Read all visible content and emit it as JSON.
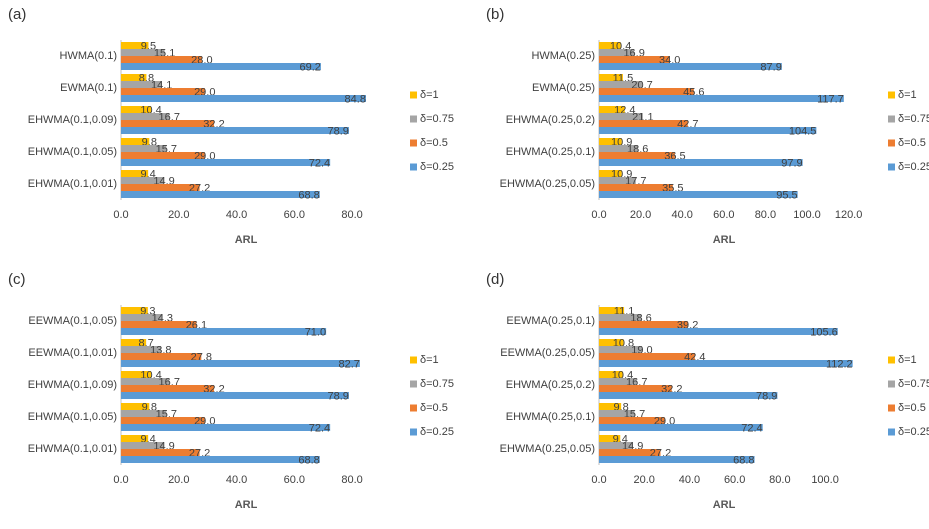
{
  "chart_data": [
    {
      "type": "bar",
      "orientation": "horizontal",
      "title": "(a)",
      "x_label": "ARL",
      "legend": "right",
      "categories": [
        "HWMA(0.1)",
        "EWMA(0.1)",
        "EHWMA(0.1,0.09)",
        "EHWMA(0.1,0.05)",
        "EHWMA(0.1,0.01)"
      ],
      "series": [
        {
          "name": "δ=1",
          "color": "#ffc000",
          "values": [
            9.5,
            8.8,
            10.4,
            9.8,
            9.4
          ],
          "value_labels": [
            "9.5",
            "8.8",
            "10.4",
            "9.8",
            "9.4"
          ]
        },
        {
          "name": "δ=0.75",
          "color": "#a5a5a5",
          "values": [
            15.1,
            14.1,
            16.7,
            15.7,
            14.9
          ],
          "value_labels": [
            "15.1",
            "14.1",
            "16.7",
            "15.7",
            "14.9"
          ]
        },
        {
          "name": "δ=0.5",
          "color": "#ed7d31",
          "values": [
            28.0,
            29.0,
            32.2,
            29.0,
            27.2
          ],
          "value_labels": [
            "28.0",
            "29.0",
            "32.2",
            "29.0",
            "27.2"
          ]
        },
        {
          "name": "δ=0.25",
          "color": "#5b9bd5",
          "values": [
            69.2,
            84.8,
            78.9,
            72.4,
            68.8
          ],
          "value_labels": [
            "69.2",
            "84.8",
            "78.9",
            "72.4",
            "68.8"
          ]
        }
      ],
      "xlim": [
        0,
        90
      ],
      "xticks": [
        {
          "value": 0,
          "label": "0.0"
        },
        {
          "value": 20,
          "label": "20.0"
        },
        {
          "value": 40,
          "label": "40.0"
        },
        {
          "value": 60,
          "label": "60.0"
        },
        {
          "value": 80,
          "label": "80.0"
        }
      ]
    },
    {
      "type": "bar",
      "orientation": "horizontal",
      "title": "(b)",
      "x_label": "ARL",
      "legend": "right",
      "categories": [
        "HWMA(0.25)",
        "EWMA(0.25)",
        "EHWMA(0.25,0.2)",
        "EHWMA(0.25,0.1)",
        "EHWMA(0.25,0.05)"
      ],
      "series": [
        {
          "name": "δ=1",
          "color": "#ffc000",
          "values": [
            10.4,
            11.5,
            12.4,
            10.9,
            10.9
          ],
          "value_labels": [
            "10.4",
            "11.5",
            "12.4",
            "10.9",
            "10.9"
          ]
        },
        {
          "name": "δ=0.75",
          "color": "#a5a5a5",
          "values": [
            16.9,
            20.7,
            21.1,
            18.6,
            17.7
          ],
          "value_labels": [
            "16.9",
            "20.7",
            "21.1",
            "18.6",
            "17.7"
          ]
        },
        {
          "name": "δ=0.5",
          "color": "#ed7d31",
          "values": [
            34.0,
            45.6,
            42.7,
            36.5,
            35.5
          ],
          "value_labels": [
            "34.0",
            "45.6",
            "42.7",
            "36.5",
            "35.5"
          ]
        },
        {
          "name": "δ=0.25",
          "color": "#5b9bd5",
          "values": [
            87.9,
            117.7,
            104.5,
            97.9,
            95.5
          ],
          "value_labels": [
            "87.9",
            "117.7",
            "104.5",
            "97.9",
            "95.5"
          ]
        }
      ],
      "xlim": [
        0,
        125
      ],
      "xticks": [
        {
          "value": 0,
          "label": "0.0"
        },
        {
          "value": 20,
          "label": "20.0"
        },
        {
          "value": 40,
          "label": "40.0"
        },
        {
          "value": 60,
          "label": "60.0"
        },
        {
          "value": 80,
          "label": "80.0"
        },
        {
          "value": 100,
          "label": "100.0"
        },
        {
          "value": 120,
          "label": "120.0"
        }
      ]
    },
    {
      "type": "bar",
      "orientation": "horizontal",
      "title": "(c)",
      "x_label": "ARL",
      "legend": "right",
      "categories": [
        "EEWMA(0.1,0.05)",
        "EEWMA(0.1,0.01)",
        "EHWMA(0.1,0.09)",
        "EHWMA(0.1,0.05)",
        "EHWMA(0.1,0.01)"
      ],
      "series": [
        {
          "name": "δ=1",
          "color": "#ffc000",
          "values": [
            9.3,
            8.7,
            10.4,
            9.8,
            9.4
          ],
          "value_labels": [
            "9.3",
            "8.7",
            "10.4",
            "9.8",
            "9.4"
          ]
        },
        {
          "name": "δ=0.75",
          "color": "#a5a5a5",
          "values": [
            14.3,
            13.8,
            16.7,
            15.7,
            14.9
          ],
          "value_labels": [
            "14.3",
            "13.8",
            "16.7",
            "15.7",
            "14.9"
          ]
        },
        {
          "name": "δ=0.5",
          "color": "#ed7d31",
          "values": [
            26.1,
            27.8,
            32.2,
            29.0,
            27.2
          ],
          "value_labels": [
            "26.1",
            "27.8",
            "32.2",
            "29.0",
            "27.2"
          ]
        },
        {
          "name": "δ=0.25",
          "color": "#5b9bd5",
          "values": [
            71.0,
            82.7,
            78.9,
            72.4,
            68.8
          ],
          "value_labels": [
            "71.0",
            "82.7",
            "78.9",
            "72.4",
            "68.8"
          ]
        }
      ],
      "xlim": [
        0,
        90
      ],
      "xticks": [
        {
          "value": 0,
          "label": "0.0"
        },
        {
          "value": 20,
          "label": "20.0"
        },
        {
          "value": 40,
          "label": "40.0"
        },
        {
          "value": 60,
          "label": "60.0"
        },
        {
          "value": 80,
          "label": "80.0"
        }
      ]
    },
    {
      "type": "bar",
      "orientation": "horizontal",
      "title": "(d)",
      "x_label": "ARL",
      "legend": "right",
      "categories": [
        "EEWMA(0.25,0.1)",
        "EEWMA(0.25,0.05)",
        "EHWMA(0.25,0.2)",
        "EHWMA(0.25,0.1)",
        "EHWMA(0.25,0.05)"
      ],
      "series": [
        {
          "name": "δ=1",
          "color": "#ffc000",
          "values": [
            11.1,
            10.8,
            10.4,
            9.8,
            9.4
          ],
          "value_labels": [
            "11.1",
            "10.8",
            "10.4",
            "9.8",
            "9.4"
          ]
        },
        {
          "name": "δ=0.75",
          "color": "#a5a5a5",
          "values": [
            18.6,
            19.0,
            16.7,
            15.7,
            14.9
          ],
          "value_labels": [
            "18.6",
            "19.0",
            "16.7",
            "15.7",
            "14.9"
          ]
        },
        {
          "name": "δ=0.5",
          "color": "#ed7d31",
          "values": [
            39.2,
            42.4,
            32.2,
            29.0,
            27.2
          ],
          "value_labels": [
            "39.2",
            "42.4",
            "32.2",
            "29.0",
            "27.2"
          ]
        },
        {
          "name": "δ=0.25",
          "color": "#5b9bd5",
          "values": [
            105.6,
            112.2,
            78.9,
            72.4,
            68.8
          ],
          "value_labels": [
            "105.6",
            "112.2",
            "78.9",
            "72.4",
            "68.8"
          ]
        }
      ],
      "xlim": [
        0,
        115
      ],
      "xticks": [
        {
          "value": 0,
          "label": "0.0"
        },
        {
          "value": 20,
          "label": "20.0"
        },
        {
          "value": 40,
          "label": "40.0"
        },
        {
          "value": 60,
          "label": "60.0"
        },
        {
          "value": 80,
          "label": "80.0"
        },
        {
          "value": 100,
          "label": "100.0"
        }
      ]
    }
  ]
}
